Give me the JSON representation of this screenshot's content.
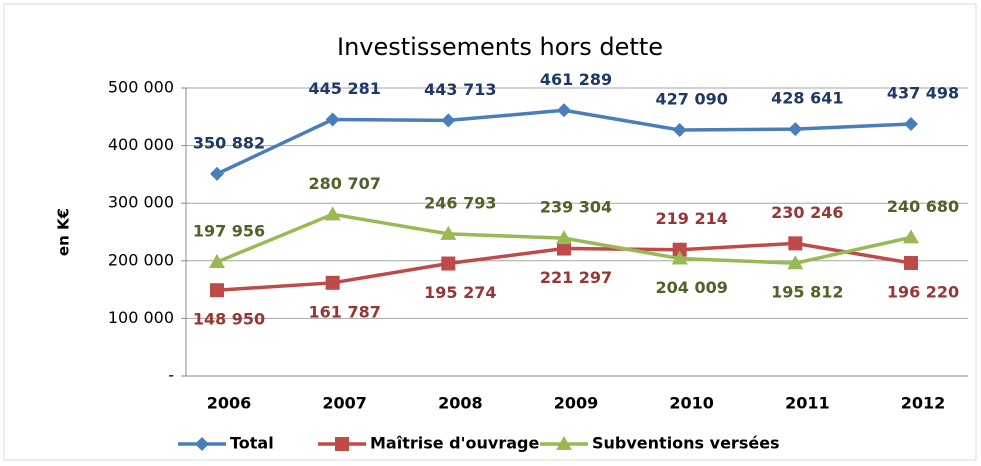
{
  "chart_data": {
    "type": "line",
    "title": "Investissements hors dette",
    "y_label": "en K€",
    "categories": [
      "2006",
      "2007",
      "2008",
      "2009",
      "2010",
      "2011",
      "2012"
    ],
    "series": [
      {
        "name": "Total",
        "color": "#4a7ebb",
        "label_color": "#1f3864",
        "marker": "diamond",
        "values": [
          350882,
          445281,
          443713,
          461289,
          427090,
          428641,
          437498
        ],
        "value_labels": [
          "350 882",
          "445 281",
          "443 713",
          "461 289",
          "427 090",
          "428 641",
          "437 498"
        ]
      },
      {
        "name": "Maîtrise d'ouvrage",
        "color": "#be4b48",
        "label_color": "#953735",
        "marker": "square",
        "values": [
          148950,
          161787,
          195274,
          221297,
          219214,
          230246,
          196220
        ],
        "value_labels": [
          "148 950",
          "161 787",
          "195 274",
          "221 297",
          "219 214",
          "230 246",
          "196 220"
        ]
      },
      {
        "name": "Subventions versées",
        "color": "#98b954",
        "label_color": "#4f6228",
        "marker": "triangle",
        "values": [
          197956,
          280707,
          246793,
          239304,
          204009,
          195812,
          240680
        ],
        "value_labels": [
          "197 956",
          "280 707",
          "246 793",
          "239 304",
          "204 009",
          "195 812",
          "240 680"
        ]
      }
    ],
    "ylim": [
      0,
      500000
    ],
    "yticks": [
      {
        "value": 0,
        "label": "-"
      },
      {
        "value": 100000,
        "label": "100 000"
      },
      {
        "value": 200000,
        "label": "200 000"
      },
      {
        "value": 300000,
        "label": "300 000"
      },
      {
        "value": 400000,
        "label": "400 000"
      },
      {
        "value": 500000,
        "label": "500 000"
      }
    ],
    "grid": true
  }
}
